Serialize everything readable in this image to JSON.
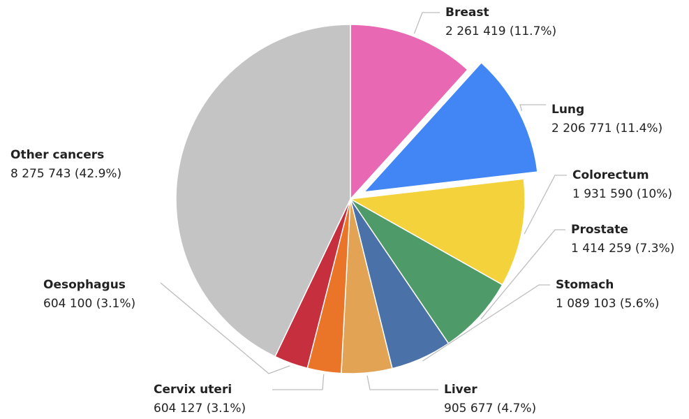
{
  "chart_data": {
    "type": "pie",
    "categories": [
      "Breast",
      "Lung",
      "Colorectum",
      "Prostate",
      "Stomach",
      "Liver",
      "Cervix uteri",
      "Oesophagus",
      "Other cancers"
    ],
    "values": [
      2261419,
      2206771,
      1931590,
      1414259,
      1089103,
      905677,
      604127,
      604100,
      8275743
    ],
    "value_labels": [
      "2 261 419 (11.7%)",
      "2 206 771 (11.4%)",
      "1 931 590 (10%)",
      "1 414 259 (7.3%)",
      "1 089 103 (5.6%)",
      "905 677 (4.7%)",
      "604 127 (3.1%)",
      "604 100 (3.1%)",
      "8 275 743 (42.9%)"
    ],
    "colors": [
      "#e868b4",
      "#4285f4",
      "#f4d23c",
      "#4e9a68",
      "#4a72a8",
      "#e2a355",
      "#ea7428",
      "#c6303e",
      "#c4c4c4"
    ],
    "exploded": "Lung"
  }
}
